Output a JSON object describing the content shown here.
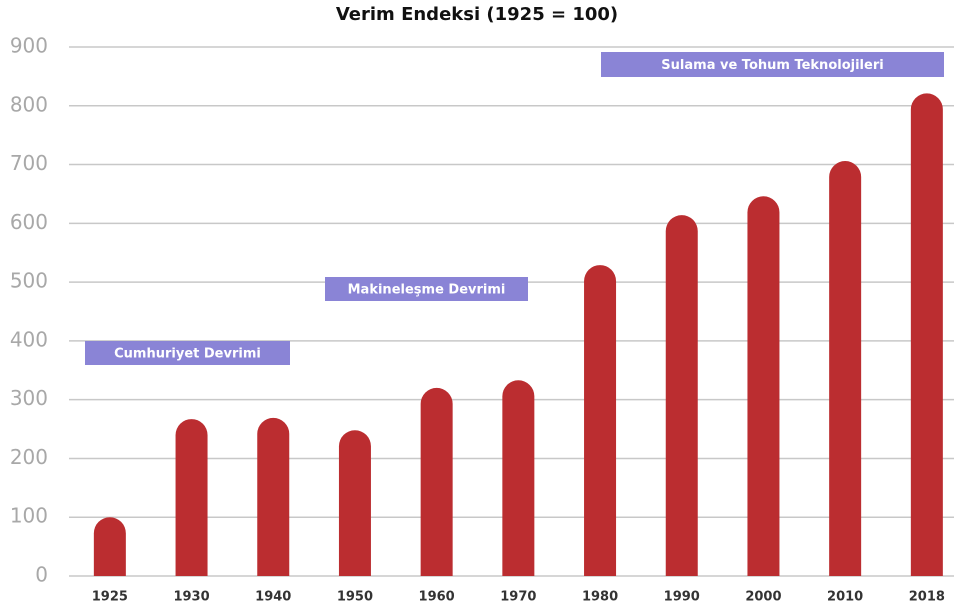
{
  "chart_data": {
    "type": "bar",
    "title": "Verim Endeksi (1925 = 100)",
    "categories": [
      "1925",
      "1930",
      "1940",
      "1950",
      "1960",
      "1970",
      "1980",
      "1990",
      "2000",
      "2010",
      "2018"
    ],
    "values": [
      100,
      267,
      269,
      248,
      320,
      333,
      529,
      614,
      646,
      706,
      821
    ],
    "color": "#bb2d30",
    "ylim": [
      0,
      900
    ],
    "yticks": [
      0,
      100,
      200,
      300,
      400,
      500,
      600,
      700,
      800,
      900
    ],
    "grid": true,
    "annotations": [
      {
        "text": "Cumhuriyet Devrimi"
      },
      {
        "text": "Makineleşme Devrimi"
      },
      {
        "text": "Sulama ve Tohum Teknolojileri"
      }
    ]
  }
}
